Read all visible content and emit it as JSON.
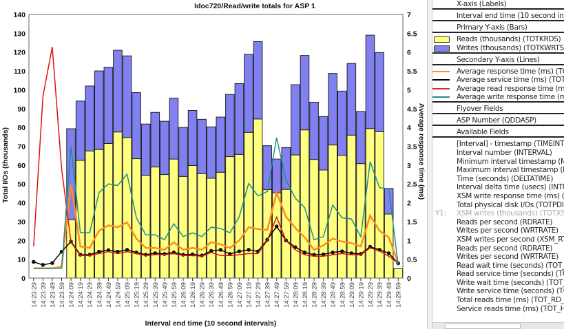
{
  "chart_data": {
    "type": "bar+line",
    "title": "Idoc720/Read/write totals for ASP 1",
    "xlabel": "Interval end time (10 second intervals)",
    "ylabel": "Total I/Os (thousands)",
    "y2label": "Average response time (ms)",
    "ylim": [
      0,
      140
    ],
    "yticks": [
      0,
      10,
      20,
      30,
      40,
      50,
      60,
      70,
      80,
      90,
      100,
      110,
      120,
      130,
      140
    ],
    "y2lim": [
      0,
      7
    ],
    "y2ticks": [
      "0",
      "0.5",
      "1",
      "1.5",
      "2",
      "2.5",
      "3",
      "3.5",
      "4",
      "4.5",
      "5",
      "5.5",
      "6",
      "6.5",
      "7"
    ],
    "categories": [
      "14:23:29",
      "14:23:39",
      "14:23:49",
      "14:23:59",
      "14:24:09",
      "14:24:19",
      "14:24:29",
      "14:24:39",
      "14:24:49",
      "14:24:59",
      "14:25:09",
      "14:25:19",
      "14:25:29",
      "14:25:39",
      "14:25:49",
      "14:25:59",
      "14:26:09",
      "14:26:19",
      "14:26:29",
      "14:26:39",
      "14:26:49",
      "14:26:59",
      "14:27:09",
      "14:27:19",
      "14:27:29",
      "14:27:39",
      "14:27:49",
      "14:27:59",
      "14:28:09",
      "14:28:19",
      "14:28:29",
      "14:28:39",
      "14:28:49",
      "14:28:59",
      "14:29:09",
      "14:29:19",
      "14:29:29",
      "14:29:39",
      "14:29:49",
      "14:29:59"
    ],
    "bar_series": [
      {
        "name": "Reads (thousands) (TOTKRDS)",
        "color": "#ffff80",
        "values": [
          0,
          0,
          0,
          0,
          31,
          62.5,
          67.5,
          68.3,
          71.5,
          77.6,
          74.6,
          63.4,
          54.5,
          59,
          55,
          63.2,
          54,
          59.8,
          55.5,
          53,
          56.2,
          64.5,
          65.7,
          77.4,
          84.5,
          47,
          45.3,
          47.1,
          65.4,
          78.7,
          63,
          57.4,
          70.7,
          65.2,
          75.9,
          60.8,
          79.4,
          77.7,
          34,
          5
        ]
      },
      {
        "name": "Writes (thousands) (TOTKWRTS)",
        "color": "#8080f0",
        "values": [
          0,
          0,
          0,
          0,
          48.3,
          31.5,
          34.5,
          41.7,
          40.5,
          43.4,
          43.4,
          35.1,
          27.3,
          29,
          28.3,
          32.4,
          26,
          29.2,
          28.8,
          27.3,
          29.3,
          33,
          37.6,
          41.4,
          41.1,
          23.3,
          17.9,
          22.2,
          37.3,
          39.5,
          30.4,
          28.4,
          38,
          34.1,
          38.1,
          27.7,
          49.6,
          42.1,
          13.6,
          0
        ]
      }
    ],
    "line_series": [
      {
        "name": "Average response time (ms) (TOTA",
        "color": "#ff8c1a",
        "values": [
          0.26,
          0.26,
          0.26,
          0.3,
          2.48,
          0.84,
          0.8,
          1.26,
          1.4,
          1.35,
          1.48,
          1.05,
          0.8,
          0.8,
          0.75,
          0.95,
          0.75,
          0.8,
          0.75,
          0.95,
          0.9,
          0.8,
          1.0,
          1.35,
          1.3,
          1.28,
          2.27,
          1.63,
          1.33,
          1.08,
          0.75,
          0.87,
          1.05,
          0.97,
          0.93,
          0.84,
          1.66,
          1.26,
          1.08,
          0.41
        ]
      },
      {
        "name": "Average service time (ms) (TOTAV",
        "color": "#000000",
        "markers": true,
        "values": [
          0.43,
          0.35,
          0.4,
          0.7,
          0.97,
          0.62,
          0.62,
          0.7,
          0.74,
          0.7,
          0.75,
          0.68,
          0.62,
          0.66,
          0.64,
          0.68,
          0.62,
          0.63,
          0.6,
          0.72,
          0.75,
          0.64,
          0.71,
          0.75,
          0.71,
          1.02,
          1.37,
          1.0,
          0.82,
          0.68,
          0.62,
          0.63,
          0.68,
          0.71,
          0.66,
          0.64,
          0.83,
          0.75,
          0.66,
          0.39
        ]
      },
      {
        "name": "Average read response time (ms) (",
        "color": "#e01010",
        "values": [
          0.84,
          4.83,
          6.14,
          2.9,
          0.95,
          0.6,
          0.6,
          0.65,
          0.7,
          0.65,
          0.7,
          0.65,
          0.6,
          0.62,
          0.62,
          0.65,
          0.6,
          0.6,
          0.58,
          0.68,
          0.6,
          0.6,
          0.62,
          0.65,
          0.65,
          1.0,
          1.62,
          1.0,
          0.75,
          0.62,
          0.58,
          0.58,
          0.62,
          0.65,
          0.62,
          0.62,
          0.8,
          0.72,
          0.58,
          0.4
        ]
      },
      {
        "name": "Average write response time (ms)",
        "color": "#1a9090",
        "values": [
          0.26,
          0.26,
          0.26,
          0.26,
          3.49,
          1.21,
          1.2,
          2.27,
          2.5,
          2.46,
          2.76,
          1.6,
          1.15,
          1.15,
          1.02,
          1.44,
          1.1,
          1.2,
          1.1,
          1.35,
          1.32,
          1.2,
          1.63,
          2.51,
          2.18,
          2.3,
          3.73,
          2.6,
          2.12,
          1.87,
          1.02,
          1.1,
          1.94,
          1.6,
          1.57,
          1.1,
          3.09,
          2.4,
          2.37,
          0.35
        ]
      }
    ],
    "grid": false,
    "legend": "right-panel"
  },
  "panel": {
    "xaxis_header": "X-axis (Labels)",
    "xaxis_field": "Interval end time (10 second intervals)",
    "primary_header": "Primary Y-axis (Bars)",
    "bars": [
      "Reads (thousands) (TOTKRDS)",
      "Writes (thousands) (TOTKWRTS)"
    ],
    "secondary_header": "Secondary Y-axis (Lines)",
    "lines": [
      "Average response time (ms) (TOTA",
      "Average service time (ms) (TOTAV",
      "Average read response time (ms) (",
      "Average write response time (ms)"
    ],
    "flyover_header": "Flyover Fields",
    "flyover_field": "ASP Number (QDDASP)",
    "available_header": "Available Fields",
    "available_prefix": "Y1:",
    "available": [
      "[Interval] - timestamp (TIMEINT)",
      "Interval number (INTERVAL)",
      "Minimum interval timestamp (MIN",
      "Maximum interval timestamp (MA",
      "Time (seconds) (DELTATIME)",
      "Interval delta time (usecs) (INTUSE",
      "XSM write response time (ms) (AV",
      "Total physical disk I/Os (TOTPDIO",
      "XSM writes (thousands) (TOTXSM",
      "Reads per second (RDRATE)",
      "Writes per second (WRTRATE)",
      "XSM writes per second (XSM_RT)",
      "Reads per second (RDRATE)",
      "Writes per second (WRTRATE)",
      "Read wait time (seconds) (TOT_DC",
      "Read service time (seconds) (TOT_",
      "Write wait time (seconds) (TOT_DI",
      "Write service time (seconds) (TOT_",
      "Total reads time (ms) (TOT_RD_M",
      "Service reads time (ms) (TOT_HRD"
    ],
    "dim_index": 8
  }
}
